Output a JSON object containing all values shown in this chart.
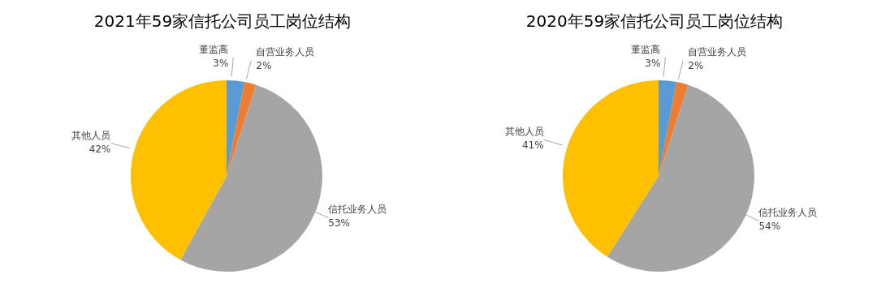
{
  "chart_data": [
    {
      "type": "pie",
      "title": "2021年59家信托公司员工岗位结构",
      "categories": [
        "董监高",
        "自营业务人员",
        "信托业务人员",
        "其他人员"
      ],
      "values": [
        3,
        2,
        53,
        42
      ],
      "colors": [
        "#5b9bd5",
        "#ed7d31",
        "#a5a5a5",
        "#ffc000"
      ],
      "value_labels": [
        "3%",
        "2%",
        "53%",
        "42%"
      ]
    },
    {
      "type": "pie",
      "title": "2020年59家信托公司员工岗位结构",
      "categories": [
        "董监高",
        "自营业务人员",
        "信托业务人员",
        "其他人员"
      ],
      "values": [
        3,
        2,
        54,
        41
      ],
      "colors": [
        "#5b9bd5",
        "#ed7d31",
        "#a5a5a5",
        "#ffc000"
      ],
      "value_labels": [
        "3%",
        "2%",
        "54%",
        "41%"
      ]
    }
  ]
}
